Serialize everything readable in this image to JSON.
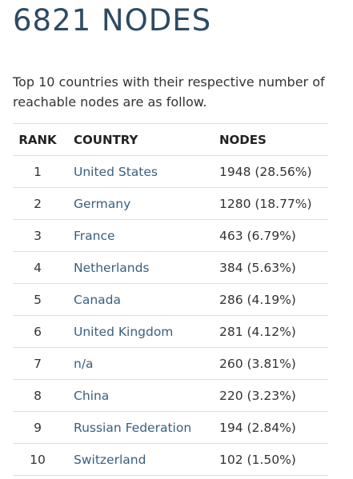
{
  "title": "6821 NODES",
  "intro": "Top 10 countries with their respective number of reachable nodes are as follow.",
  "table": {
    "headers": {
      "rank": "RANK",
      "country": "COUNTRY",
      "nodes": "NODES"
    },
    "rows": [
      {
        "rank": "1",
        "country": "United States",
        "nodes": "1948 (28.56%)"
      },
      {
        "rank": "2",
        "country": "Germany",
        "nodes": "1280 (18.77%)"
      },
      {
        "rank": "3",
        "country": "France",
        "nodes": "463 (6.79%)"
      },
      {
        "rank": "4",
        "country": "Netherlands",
        "nodes": "384 (5.63%)"
      },
      {
        "rank": "5",
        "country": "Canada",
        "nodes": "286 (4.19%)"
      },
      {
        "rank": "6",
        "country": "United Kingdom",
        "nodes": "281 (4.12%)"
      },
      {
        "rank": "7",
        "country": "n/a",
        "nodes": "260 (3.81%)"
      },
      {
        "rank": "8",
        "country": "China",
        "nodes": "220 (3.23%)"
      },
      {
        "rank": "9",
        "country": "Russian Federation",
        "nodes": "194 (2.84%)"
      },
      {
        "rank": "10",
        "country": "Switzerland",
        "nodes": "102 (1.50%)"
      }
    ]
  },
  "colors": {
    "title": "#2e4a62",
    "link": "#3a5f7d",
    "divider": "#dcdcdc"
  }
}
